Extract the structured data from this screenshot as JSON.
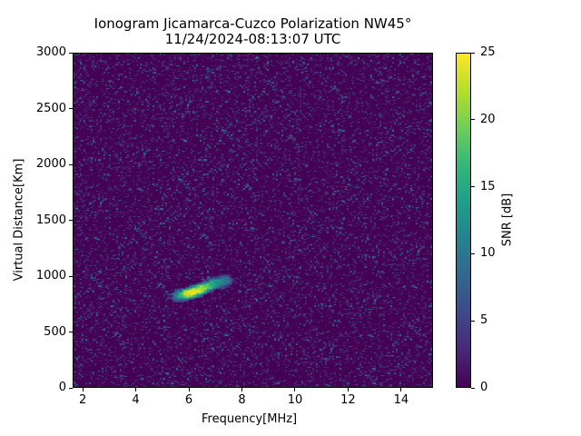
{
  "chart_data": {
    "type": "heatmap",
    "title": "Ionogram Jicamarca-Cuzco Polarization NW45°",
    "subtitle": "11/24/2024-08:13:07 UTC",
    "xlabel": "Frequency[MHz]",
    "ylabel": "Virtual Distance[Km]",
    "xlim": [
      1.62,
      15.2
    ],
    "ylim": [
      0,
      3000
    ],
    "xticks": [
      "2",
      "4",
      "6",
      "8",
      "10",
      "12",
      "14"
    ],
    "yticks": [
      "0",
      "500",
      "1000",
      "1500",
      "2000",
      "2500",
      "3000"
    ],
    "colorbar": {
      "label": "SNR [dB]",
      "range": [
        0,
        25
      ],
      "ticks": [
        "0",
        "5",
        "10",
        "15",
        "20",
        "25"
      ],
      "colormap": "viridis"
    },
    "background_snr_db": [
      0,
      8
    ],
    "echo_trace": [
      {
        "freq_mhz": 5.5,
        "distance_km": 830,
        "snr_db": 10
      },
      {
        "freq_mhz": 5.9,
        "distance_km": 850,
        "snr_db": 24
      },
      {
        "freq_mhz": 6.2,
        "distance_km": 870,
        "snr_db": 25
      },
      {
        "freq_mhz": 6.5,
        "distance_km": 900,
        "snr_db": 22
      },
      {
        "freq_mhz": 6.9,
        "distance_km": 940,
        "snr_db": 15
      },
      {
        "freq_mhz": 7.4,
        "distance_km": 970,
        "snr_db": 10
      }
    ]
  }
}
